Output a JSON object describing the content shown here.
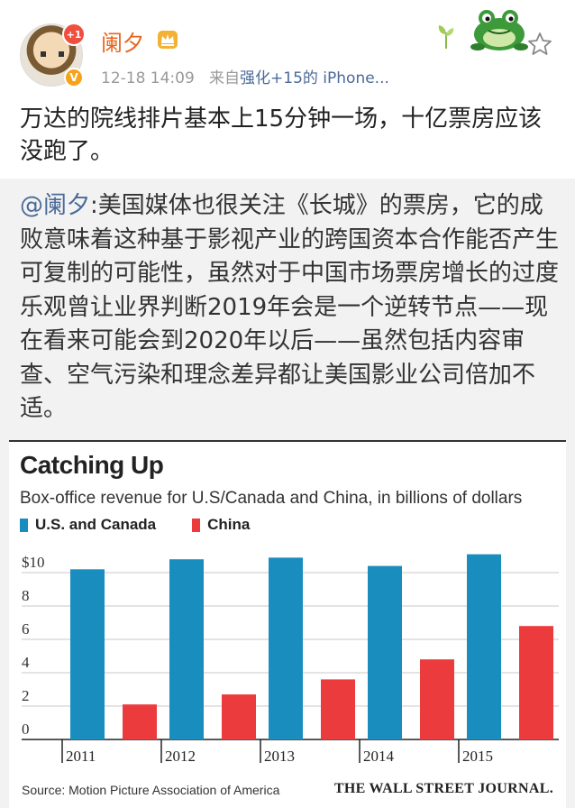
{
  "post": {
    "username": "阑夕",
    "avatar_badge": "+1",
    "verified_mark": "V",
    "timestamp": "12-18 14:09",
    "source_prefix": "来自",
    "source_name": "强化+15的 iPhone...",
    "text": "万达的院线排片基本上15分钟一场，十亿票房应该没跑了。"
  },
  "repost": {
    "mention": "@阑夕",
    "text": ":美国媒体也很关注《长城》的票房，它的成败意味着这种基于影视产业的跨国资本合作能否产生可复制的可能性，虽然对于中国市场票房增长的过度乐观曾让业界判断2019年会是一个逆转节点——现在看来可能会到2020年以后——虽然包括内容审查、空气污染和理念差异都让美国影业公司倍加不适。"
  },
  "icons": {
    "crown": "crown-icon",
    "frog": "frog-decoration-icon",
    "sprout": "sprout-icon",
    "favorite": "star-icon"
  },
  "colors": {
    "username": "#e8641b",
    "link": "#4a6a98",
    "series_us": "#1a8dbf",
    "series_china": "#ec3b3d"
  },
  "chart_data": {
    "type": "bar",
    "title": "Catching Up",
    "subtitle": "Box-office revenue for U.S/Canada and China, in billions of dollars",
    "categories": [
      "2011",
      "2012",
      "2013",
      "2014",
      "2015"
    ],
    "series": [
      {
        "name": "U.S. and Canada",
        "color": "#1a8dbf",
        "values": [
          10.2,
          10.8,
          10.9,
          10.4,
          11.1
        ]
      },
      {
        "name": "China",
        "color": "#ec3b3d",
        "values": [
          2.1,
          2.7,
          3.6,
          4.8,
          6.8
        ]
      }
    ],
    "y_ticks": [
      "0",
      "2",
      "4",
      "6",
      "8",
      "$10"
    ],
    "y_tick_values": [
      0,
      2,
      4,
      6,
      8,
      10
    ],
    "ylim": [
      0,
      12
    ],
    "grid": true,
    "legend_position": "top-left",
    "source": "Source: Motion Picture Association of America",
    "publisher": "THE WALL STREET JOURNAL."
  }
}
